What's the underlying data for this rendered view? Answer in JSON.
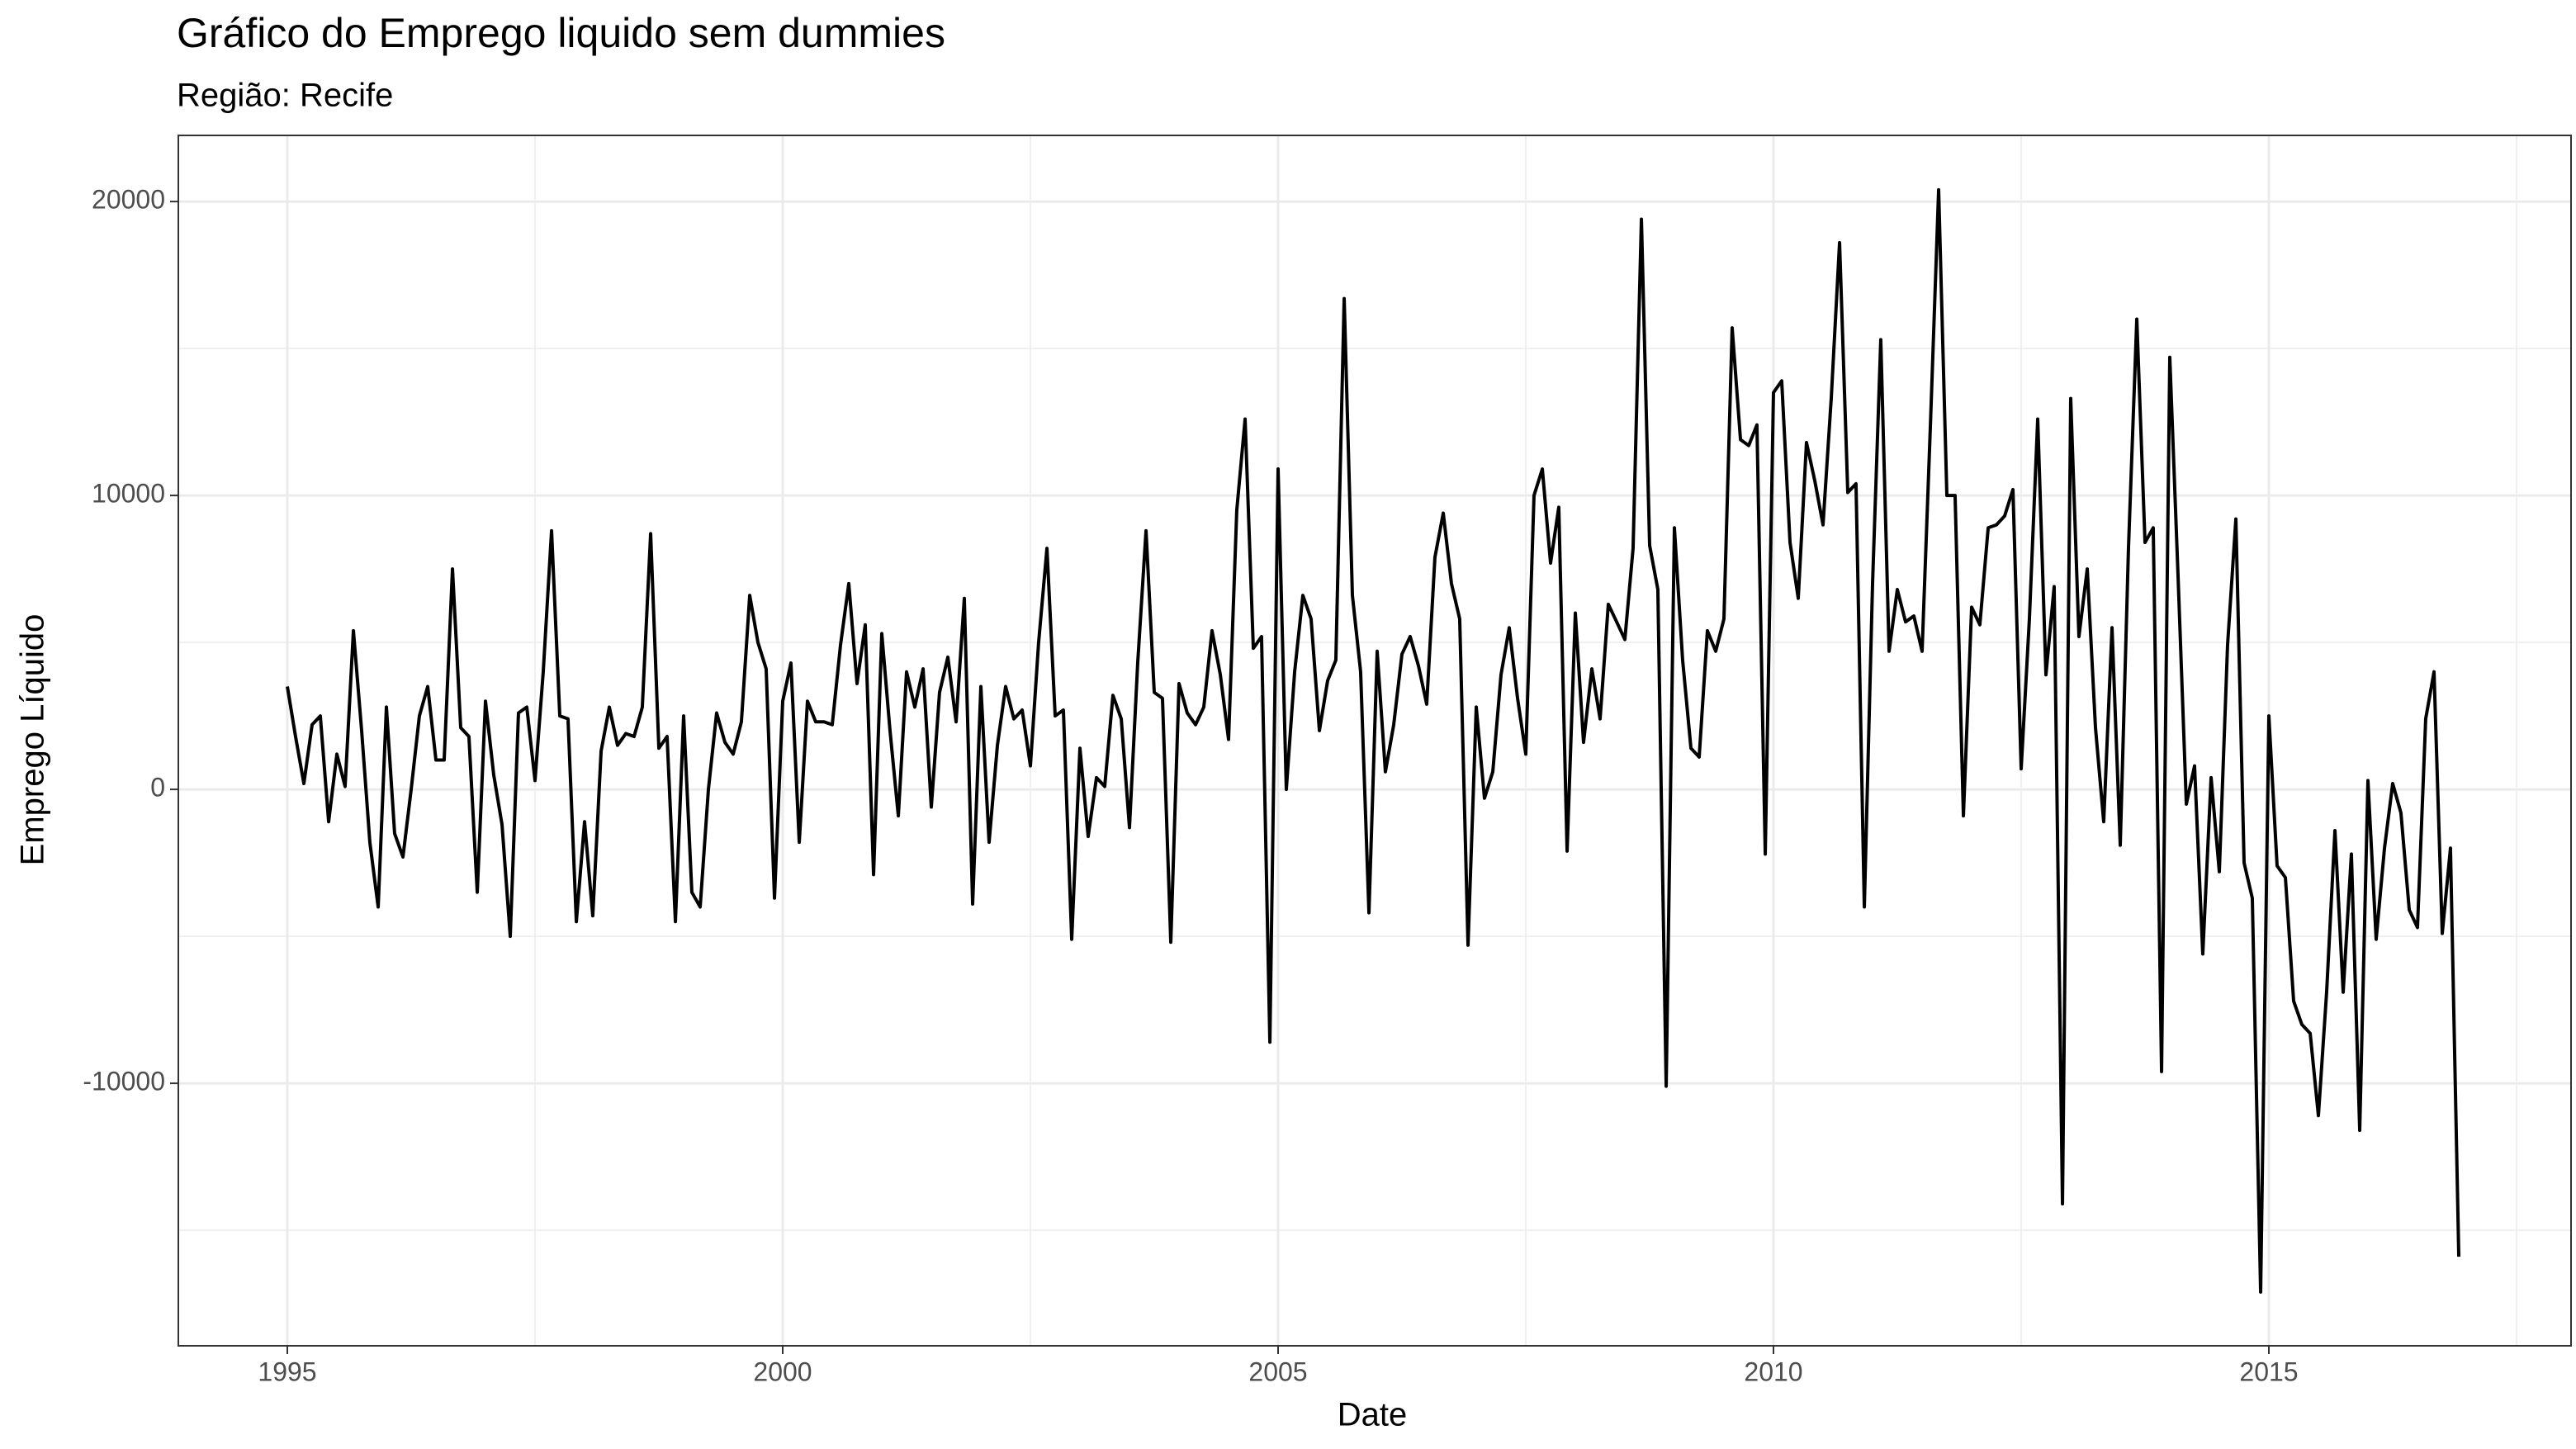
{
  "chart_data": {
    "type": "line",
    "title": "Gráfico do Emprego liquido sem dummies",
    "subtitle": "Região: Recife",
    "x_label": "Date",
    "y_label": "Emprego Líquido",
    "grid": true,
    "xlim": [
      1993.9,
      2018.05
    ],
    "ylim": [
      -18930,
      22250
    ],
    "xticks": [
      1995,
      2000,
      2005,
      2010,
      2015
    ],
    "yticks": [
      -10000,
      0,
      10000,
      20000
    ],
    "series": [
      {
        "color": "#000000",
        "x": [
          1995,
          1995.083,
          1995.167,
          1995.25,
          1995.333,
          1995.417,
          1995.5,
          1995.583,
          1995.667,
          1995.75,
          1995.833,
          1995.917,
          1996,
          1996.083,
          1996.167,
          1996.25,
          1996.333,
          1996.417,
          1996.5,
          1996.583,
          1996.667,
          1996.75,
          1996.833,
          1996.917,
          1997,
          1997.083,
          1997.167,
          1997.25,
          1997.333,
          1997.417,
          1997.5,
          1997.583,
          1997.667,
          1997.75,
          1997.833,
          1997.917,
          1998,
          1998.083,
          1998.167,
          1998.25,
          1998.333,
          1998.417,
          1998.5,
          1998.583,
          1998.667,
          1998.75,
          1998.833,
          1998.917,
          1999,
          1999.083,
          1999.167,
          1999.25,
          1999.333,
          1999.417,
          1999.5,
          1999.583,
          1999.667,
          1999.75,
          1999.833,
          1999.917,
          2000,
          2000.083,
          2000.167,
          2000.25,
          2000.333,
          2000.417,
          2000.5,
          2000.583,
          2000.667,
          2000.75,
          2000.833,
          2000.917,
          2001,
          2001.083,
          2001.167,
          2001.25,
          2001.333,
          2001.417,
          2001.5,
          2001.583,
          2001.667,
          2001.75,
          2001.833,
          2001.917,
          2002,
          2002.083,
          2002.167,
          2002.25,
          2002.333,
          2002.417,
          2002.5,
          2002.583,
          2002.667,
          2002.75,
          2002.833,
          2002.917,
          2003,
          2003.083,
          2003.167,
          2003.25,
          2003.333,
          2003.417,
          2003.5,
          2003.583,
          2003.667,
          2003.75,
          2003.833,
          2003.917,
          2004,
          2004.083,
          2004.167,
          2004.25,
          2004.333,
          2004.417,
          2004.5,
          2004.583,
          2004.667,
          2004.75,
          2004.833,
          2004.917,
          2005,
          2005.083,
          2005.167,
          2005.25,
          2005.333,
          2005.417,
          2005.5,
          2005.583,
          2005.667,
          2005.75,
          2005.833,
          2005.917,
          2006,
          2006.083,
          2006.167,
          2006.25,
          2006.333,
          2006.417,
          2006.5,
          2006.583,
          2006.667,
          2006.75,
          2006.833,
          2006.917,
          2007,
          2007.083,
          2007.167,
          2007.25,
          2007.333,
          2007.417,
          2007.5,
          2007.583,
          2007.667,
          2007.75,
          2007.833,
          2007.917,
          2008,
          2008.083,
          2008.167,
          2008.25,
          2008.333,
          2008.417,
          2008.5,
          2008.583,
          2008.667,
          2008.75,
          2008.833,
          2008.917,
          2009,
          2009.083,
          2009.167,
          2009.25,
          2009.333,
          2009.417,
          2009.5,
          2009.583,
          2009.667,
          2009.75,
          2009.833,
          2009.917,
          2010,
          2010.083,
          2010.167,
          2010.25,
          2010.333,
          2010.417,
          2010.5,
          2010.583,
          2010.667,
          2010.75,
          2010.833,
          2010.917,
          2011,
          2011.083,
          2011.167,
          2011.25,
          2011.333,
          2011.417,
          2011.5,
          2011.583,
          2011.667,
          2011.75,
          2011.833,
          2011.917,
          2012,
          2012.083,
          2012.167,
          2012.25,
          2012.333,
          2012.417,
          2012.5,
          2012.583,
          2012.667,
          2012.75,
          2012.833,
          2012.917,
          2013,
          2013.083,
          2013.167,
          2013.25,
          2013.333,
          2013.417,
          2013.5,
          2013.583,
          2013.667,
          2013.75,
          2013.833,
          2013.917,
          2014,
          2014.083,
          2014.167,
          2014.25,
          2014.333,
          2014.417,
          2014.5,
          2014.583,
          2014.667,
          2014.75,
          2014.833,
          2014.917,
          2015,
          2015.083,
          2015.167,
          2015.25,
          2015.333,
          2015.417,
          2015.5,
          2015.583,
          2015.667,
          2015.75,
          2015.833,
          2015.917,
          2016,
          2016.083,
          2016.167,
          2016.25,
          2016.333,
          2016.417,
          2016.5,
          2016.583,
          2016.667,
          2016.75,
          2016.833,
          2016.917
        ],
        "values": [
          3500,
          1800,
          200,
          2200,
          2500,
          -1100,
          1200,
          100,
          5400,
          2000,
          -1800,
          -4000,
          2800,
          -1500,
          -2300,
          0,
          2500,
          3500,
          1000,
          1000,
          7500,
          2100,
          1800,
          -3500,
          3000,
          500,
          -1200,
          -5000,
          2600,
          2800,
          300,
          4000,
          8800,
          2500,
          2400,
          -4500,
          -1100,
          -4300,
          1300,
          2800,
          1500,
          1900,
          1800,
          2800,
          8700,
          1400,
          1800,
          -4500,
          2500,
          -3500,
          -4000,
          0,
          2600,
          1600,
          1200,
          2300,
          6600,
          5000,
          4100,
          -3700,
          3000,
          4300,
          -1800,
          3000,
          2300,
          2300,
          2200,
          4900,
          7000,
          3600,
          5600,
          -2900,
          5300,
          2000,
          -900,
          4000,
          2800,
          4100,
          -600,
          3300,
          4500,
          2300,
          6500,
          -3900,
          3500,
          -1800,
          1500,
          3500,
          2400,
          2700,
          800,
          5000,
          8200,
          2500,
          2700,
          -5100,
          1400,
          -1600,
          400,
          100,
          3200,
          2400,
          -1300,
          4300,
          8800,
          3300,
          3100,
          -5200,
          3600,
          2600,
          2200,
          2800,
          5400,
          3900,
          1700,
          9500,
          12600,
          4800,
          5200,
          -8600,
          10900,
          0,
          4000,
          6600,
          5800,
          2000,
          3700,
          4400,
          16700,
          6600,
          4000,
          -4200,
          4700,
          600,
          2200,
          4600,
          5200,
          4200,
          2900,
          7900,
          9400,
          7000,
          5800,
          -5300,
          2800,
          -300,
          600,
          3900,
          5500,
          3100,
          1200,
          10000,
          10900,
          7700,
          9600,
          -2100,
          6000,
          1600,
          4100,
          2400,
          6300,
          5700,
          5100,
          8200,
          19400,
          8300,
          6800,
          -10100,
          8900,
          4400,
          1400,
          1100,
          5400,
          4700,
          5800,
          15700,
          11900,
          11700,
          12400,
          -2200,
          13500,
          13900,
          8400,
          6500,
          11800,
          10500,
          9000,
          13300,
          18600,
          10100,
          10400,
          -4000,
          7000,
          15300,
          4700,
          6800,
          5700,
          5900,
          4700,
          12300,
          20400,
          10000,
          10000,
          -900,
          6200,
          5600,
          8900,
          9000,
          9300,
          10200,
          700,
          5800,
          12600,
          3900,
          6900,
          -14100,
          13300,
          5200,
          7500,
          2100,
          -1100,
          5500,
          -1900,
          8200,
          16000,
          8400,
          8900,
          -9600,
          14700,
          7300,
          -500,
          800,
          -5600,
          400,
          -2800,
          4900,
          9200,
          -2500,
          -3700,
          -17100,
          2500,
          -2600,
          -3000,
          -7200,
          -8000,
          -8300,
          -11100,
          -6900,
          -1400,
          -6900,
          -2200,
          -11600,
          300,
          -5100,
          -2000,
          200,
          -800,
          -4100,
          -4700,
          2400,
          4000,
          -4900,
          -2000,
          -15900
        ]
      }
    ]
  }
}
